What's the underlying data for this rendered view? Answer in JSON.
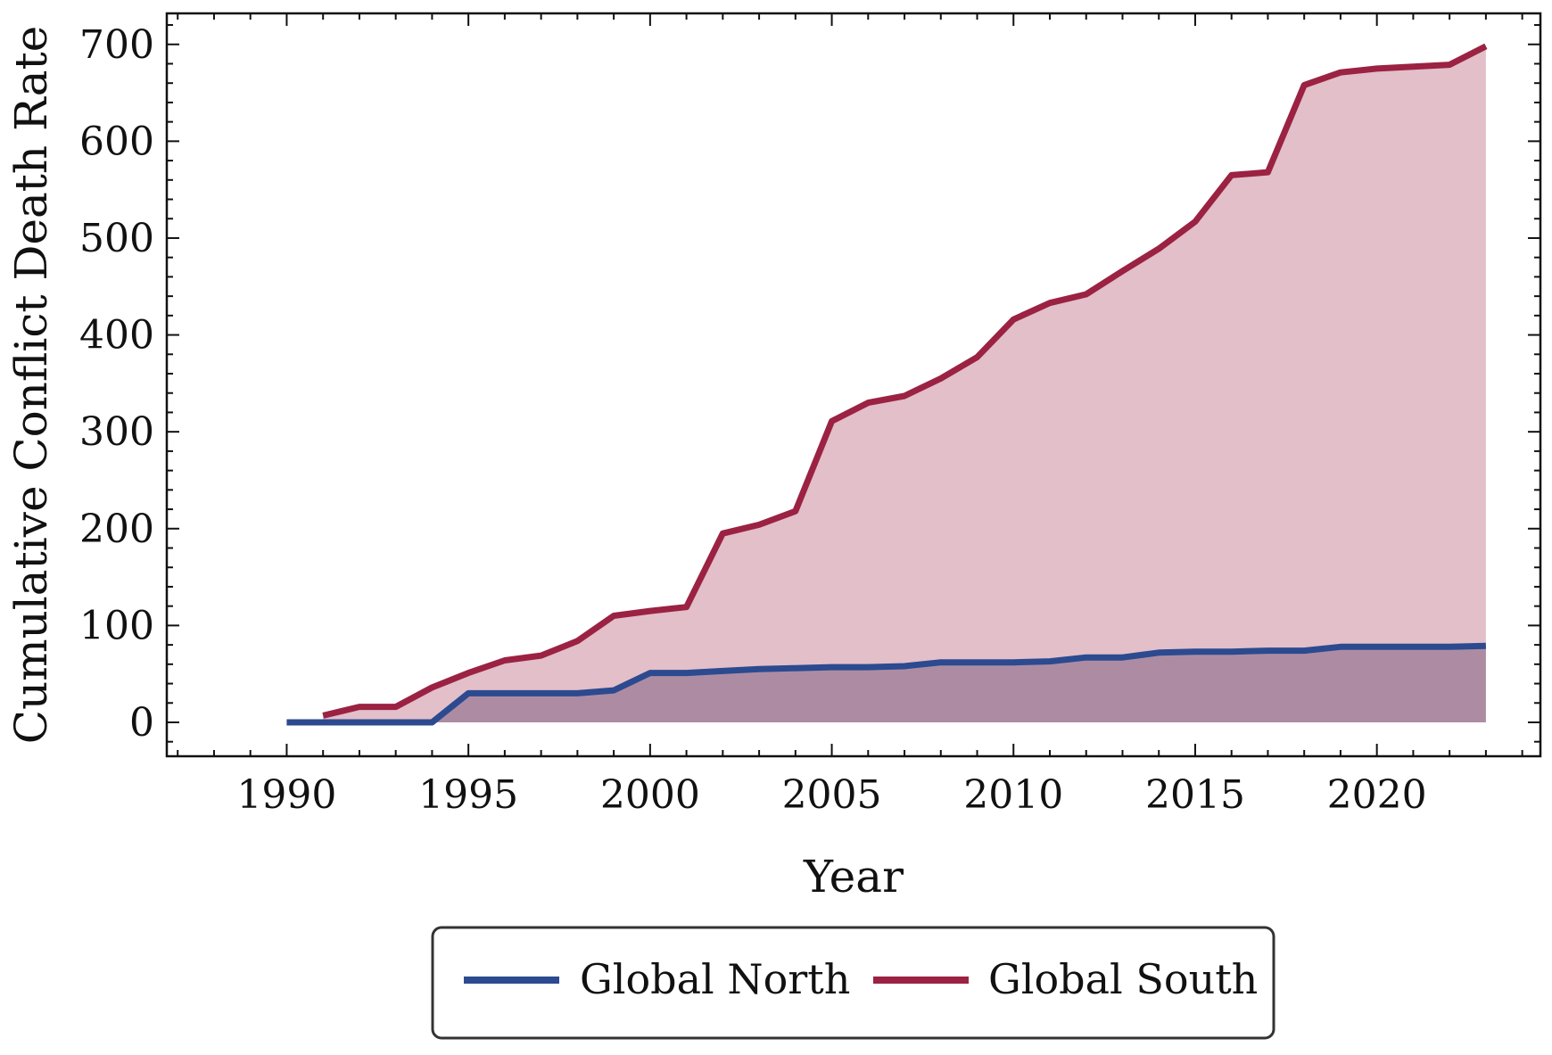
{
  "chart_data": {
    "type": "area",
    "title": "",
    "xlabel": "Year",
    "ylabel": "Cumulative Conflict Death Rate",
    "xlim": [
      1986.7,
      2024.5
    ],
    "ylim": [
      -35,
      732
    ],
    "xticks": [
      1990,
      1995,
      2000,
      2005,
      2010,
      2015,
      2020
    ],
    "yticks": [
      0,
      100,
      200,
      300,
      400,
      500,
      600,
      700
    ],
    "grid": false,
    "legend_position": "bottom-center, below axes",
    "series": [
      {
        "name": "Global North",
        "color": "#2c4a8f",
        "fill_color": "#8a6b8a",
        "x": [
          1990,
          1991,
          1992,
          1993,
          1994,
          1995,
          1996,
          1997,
          1998,
          1999,
          2000,
          2001,
          2002,
          2003,
          2004,
          2005,
          2006,
          2007,
          2008,
          2009,
          2010,
          2011,
          2012,
          2013,
          2014,
          2015,
          2016,
          2017,
          2018,
          2019,
          2020,
          2021,
          2022,
          2023
        ],
        "y": [
          0,
          0,
          0,
          0,
          0,
          30,
          30,
          30,
          30,
          33,
          51,
          51,
          53,
          55,
          56,
          57,
          57,
          58,
          62,
          62,
          62,
          63,
          67,
          67,
          72,
          73,
          73,
          74,
          74,
          78,
          78,
          78,
          78,
          79
        ]
      },
      {
        "name": "Global South",
        "color": "#9b2242",
        "fill_color": "#c67f93",
        "x": [
          1991,
          1992,
          1993,
          1994,
          1995,
          1996,
          1997,
          1998,
          1999,
          2000,
          2001,
          2002,
          2003,
          2004,
          2005,
          2006,
          2007,
          2008,
          2009,
          2010,
          2011,
          2012,
          2013,
          2014,
          2015,
          2016,
          2017,
          2018,
          2019,
          2020,
          2021,
          2022,
          2023
        ],
        "y": [
          7,
          16,
          16,
          36,
          51,
          64,
          69,
          84,
          110,
          115,
          119,
          195,
          204,
          218,
          311,
          330,
          337,
          355,
          377,
          416,
          433,
          442,
          466,
          489,
          517,
          565,
          568,
          658,
          671,
          675,
          677,
          679,
          698
        ]
      }
    ]
  }
}
